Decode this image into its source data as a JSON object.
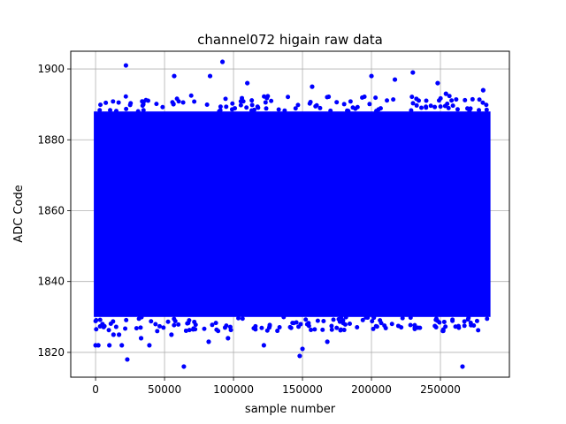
{
  "chart_data": {
    "type": "scatter",
    "title": "channel072 higain raw data",
    "xlabel": "sample number",
    "ylabel": "ADC Code",
    "xlim": [
      -18000,
      300000
    ],
    "ylim": [
      1813,
      1905
    ],
    "x_ticks": [
      0,
      50000,
      100000,
      150000,
      200000,
      250000
    ],
    "y_ticks": [
      1820,
      1840,
      1860,
      1880,
      1900
    ],
    "grid": true,
    "color": "#0000ff",
    "series": [
      {
        "x_range": [
          0,
          285000
        ],
        "dense_band": [
          1830,
          1888
        ],
        "outliers": [
          {
            "x": 0,
            "y": 1822
          },
          {
            "x": 2000,
            "y": 1822
          },
          {
            "x": 5000,
            "y": 1828
          },
          {
            "x": 10000,
            "y": 1822
          },
          {
            "x": 13000,
            "y": 1825
          },
          {
            "x": 17000,
            "y": 1825
          },
          {
            "x": 19000,
            "y": 1822
          },
          {
            "x": 22000,
            "y": 1901
          },
          {
            "x": 23000,
            "y": 1818
          },
          {
            "x": 33000,
            "y": 1824
          },
          {
            "x": 39000,
            "y": 1822
          },
          {
            "x": 55000,
            "y": 1825
          },
          {
            "x": 57000,
            "y": 1898
          },
          {
            "x": 64000,
            "y": 1816
          },
          {
            "x": 82000,
            "y": 1823
          },
          {
            "x": 83000,
            "y": 1898
          },
          {
            "x": 92000,
            "y": 1902
          },
          {
            "x": 96000,
            "y": 1824
          },
          {
            "x": 110000,
            "y": 1896
          },
          {
            "x": 122000,
            "y": 1822
          },
          {
            "x": 148000,
            "y": 1819
          },
          {
            "x": 150000,
            "y": 1821
          },
          {
            "x": 157000,
            "y": 1895
          },
          {
            "x": 168000,
            "y": 1823
          },
          {
            "x": 200000,
            "y": 1898
          },
          {
            "x": 217000,
            "y": 1897
          },
          {
            "x": 230000,
            "y": 1899
          },
          {
            "x": 248000,
            "y": 1896
          },
          {
            "x": 254000,
            "y": 1893
          },
          {
            "x": 266000,
            "y": 1816
          },
          {
            "x": 281000,
            "y": 1894
          }
        ]
      }
    ]
  }
}
